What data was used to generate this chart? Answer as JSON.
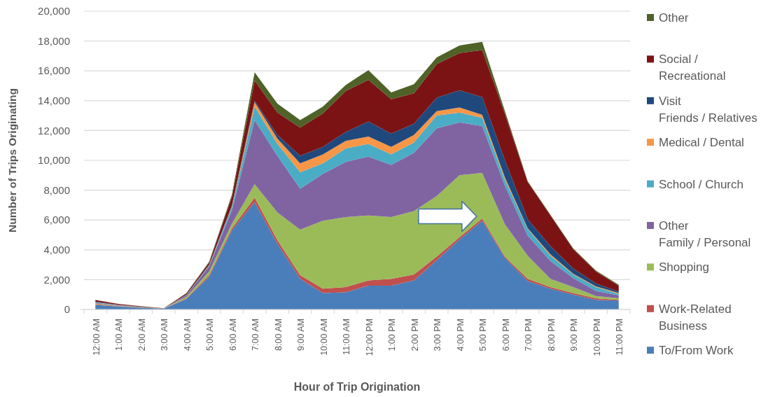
{
  "chart_data": {
    "type": "area",
    "stacked": true,
    "xlabel": "Hour of Trip Origination",
    "ylabel": "Number of Trips Originating",
    "categories": [
      "12:00 AM",
      "1:00 AM",
      "2:00 AM",
      "3:00 AM",
      "4:00 AM",
      "5:00 AM",
      "6:00 AM",
      "7:00 AM",
      "8:00 AM",
      "9:00 AM",
      "10:00 AM",
      "11:00 AM",
      "12:00 PM",
      "1:00 PM",
      "2:00 PM",
      "3:00 PM",
      "4:00 PM",
      "5:00 PM",
      "6:00 PM",
      "7:00 PM",
      "8:00 PM",
      "9:00 PM",
      "10:00 PM",
      "11:00 PM"
    ],
    "ylim": [
      0,
      20000
    ],
    "yticks": [
      0,
      {
        "value": 2000,
        "label": "2,000"
      },
      {
        "value": 4000,
        "label": "4,000"
      },
      {
        "value": 6000,
        "label": "6,000"
      },
      {
        "value": 8000,
        "label": "8,000"
      },
      {
        "value": 10000,
        "label": "10,000"
      },
      {
        "value": 12000,
        "label": "12,000"
      },
      {
        "value": 14000,
        "label": "14,000"
      },
      {
        "value": 16000,
        "label": "16,000"
      },
      {
        "value": 18000,
        "label": "18,000"
      },
      {
        "value": 20000,
        "label": "20,000"
      }
    ],
    "grid": "y",
    "legend": "right",
    "series": [
      {
        "name": "To/From Work",
        "color": "#4a7ebb",
        "values": [
          300,
          200,
          120,
          50,
          700,
          2200,
          5300,
          7200,
          4400,
          2050,
          1100,
          1150,
          1600,
          1600,
          1950,
          3300,
          4700,
          5950,
          3450,
          1900,
          1400,
          1000,
          650,
          600
        ]
      },
      {
        "name": "Work-Related\nBusiness",
        "color": "#c0504d",
        "values": [
          50,
          20,
          10,
          0,
          50,
          100,
          150,
          300,
          250,
          250,
          300,
          350,
          350,
          450,
          400,
          250,
          150,
          150,
          100,
          150,
          100,
          100,
          100,
          50
        ]
      },
      {
        "name": "Shopping",
        "color": "#9bbb59",
        "values": [
          50,
          30,
          20,
          10,
          100,
          250,
          300,
          900,
          1850,
          3050,
          4550,
          4700,
          4350,
          4150,
          4250,
          4050,
          4150,
          3050,
          2150,
          1550,
          550,
          400,
          150,
          100
        ]
      },
      {
        "name": "Other\nFamily / Personal",
        "color": "#8064a2",
        "values": [
          50,
          30,
          20,
          10,
          100,
          350,
          900,
          4300,
          3800,
          2750,
          3150,
          3700,
          3950,
          3500,
          3900,
          4550,
          3550,
          3150,
          2600,
          1350,
          1200,
          600,
          350,
          200
        ]
      },
      {
        "name": "School / Church",
        "color": "#4bacc6",
        "values": [
          20,
          10,
          0,
          0,
          20,
          50,
          200,
          900,
          800,
          1100,
          700,
          900,
          850,
          700,
          700,
          850,
          650,
          550,
          400,
          450,
          350,
          250,
          250,
          100
        ]
      },
      {
        "name": "Medical / Dental",
        "color": "#f79646",
        "values": [
          10,
          10,
          0,
          0,
          10,
          20,
          50,
          300,
          350,
          600,
          600,
          500,
          500,
          500,
          500,
          300,
          350,
          200,
          150,
          50,
          100,
          50,
          50,
          50
        ]
      },
      {
        "name": "Visit\nFriends / Relatives",
        "color": "#1f497d",
        "values": [
          50,
          20,
          10,
          0,
          20,
          30,
          100,
          100,
          250,
          500,
          500,
          600,
          1000,
          900,
          750,
          900,
          1150,
          1200,
          1150,
          600,
          550,
          350,
          200,
          100
        ]
      },
      {
        "name": "Social /\nRecreational",
        "color": "#7b1315",
        "values": [
          100,
          50,
          30,
          10,
          80,
          150,
          550,
          1350,
          1500,
          1900,
          2250,
          2750,
          2800,
          2300,
          2050,
          2250,
          2500,
          3150,
          3100,
          2500,
          2050,
          1300,
          800,
          400
        ]
      },
      {
        "name": "Other",
        "color": "#4f6228",
        "values": [
          20,
          10,
          10,
          0,
          20,
          50,
          150,
          550,
          600,
          500,
          450,
          400,
          650,
          450,
          600,
          450,
          500,
          550,
          200,
          50,
          50,
          50,
          50,
          50
        ]
      }
    ]
  }
}
